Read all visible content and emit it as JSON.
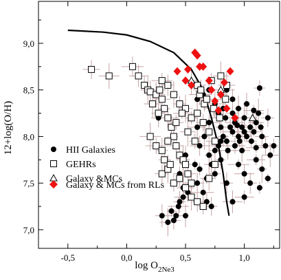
{
  "chart_data": {
    "type": "scatter",
    "title": "",
    "xlabel": {
      "main": "log O",
      "sub": "2Ne3"
    },
    "ylabel": "12+log(O/H)",
    "xlim": [
      -0.75,
      1.3
    ],
    "ylim": [
      6.8,
      9.45
    ],
    "x_ticks": [
      -0.5,
      0.0,
      0.5,
      1.0
    ],
    "x_tick_labels": [
      "-0,5",
      "0,0",
      "0,5",
      "1,0"
    ],
    "y_ticks": [
      7.0,
      7.5,
      8.0,
      8.5,
      9.0
    ],
    "y_tick_labels": [
      "7,0",
      "7,5",
      "8,0",
      "8,5",
      "9,0"
    ],
    "grid": false,
    "legend_position": "left-center",
    "colors": {
      "galaxy_rl": "#ee1111",
      "errorbar": "#c4a4a4",
      "black": "#000000"
    },
    "series": [
      {
        "name": "HII Galaxies",
        "marker": "filled-circle",
        "points": [
          [
            0.27,
            8.2
          ],
          [
            0.38,
            7.2
          ],
          [
            0.4,
            7.1
          ],
          [
            0.42,
            7.15
          ],
          [
            0.45,
            7.3
          ],
          [
            0.48,
            7.35
          ],
          [
            0.5,
            7.15
          ],
          [
            0.52,
            7.4
          ],
          [
            0.55,
            7.5
          ],
          [
            0.6,
            7.5
          ],
          [
            0.62,
            7.65
          ],
          [
            0.65,
            7.4
          ],
          [
            0.68,
            7.55
          ],
          [
            0.7,
            7.8
          ],
          [
            0.72,
            7.7
          ],
          [
            0.75,
            7.85
          ],
          [
            0.78,
            7.9
          ],
          [
            0.8,
            7.75
          ],
          [
            0.82,
            8.0
          ],
          [
            0.85,
            7.95
          ],
          [
            0.88,
            8.1
          ],
          [
            0.9,
            8.05
          ],
          [
            0.92,
            8.15
          ],
          [
            0.95,
            8.0
          ],
          [
            0.98,
            8.1
          ],
          [
            1.0,
            8.2
          ],
          [
            1.02,
            8.0
          ],
          [
            1.05,
            8.1
          ],
          [
            1.08,
            8.05
          ],
          [
            1.1,
            8.15
          ],
          [
            1.12,
            8.25
          ],
          [
            1.15,
            8.0
          ],
          [
            1.18,
            7.9
          ],
          [
            1.2,
            8.2
          ],
          [
            1.25,
            7.9
          ],
          [
            0.6,
            8.4
          ],
          [
            0.65,
            8.45
          ],
          [
            0.7,
            8.5
          ],
          [
            0.75,
            8.35
          ],
          [
            0.85,
            8.5
          ],
          [
            0.9,
            8.4
          ],
          [
            1.13,
            8.52
          ],
          [
            0.55,
            8.2
          ],
          [
            0.6,
            8.1
          ],
          [
            0.7,
            8.15
          ],
          [
            0.75,
            7.6
          ],
          [
            0.85,
            7.5
          ],
          [
            0.95,
            7.7
          ],
          [
            1.0,
            7.6
          ],
          [
            1.05,
            7.5
          ],
          [
            1.1,
            7.75
          ],
          [
            1.15,
            7.65
          ],
          [
            1.2,
            7.55
          ],
          [
            1.22,
            7.8
          ],
          [
            0.9,
            7.3
          ],
          [
            1.0,
            7.35
          ],
          [
            1.13,
            7.45
          ],
          [
            0.58,
            7.7
          ],
          [
            0.62,
            7.9
          ],
          [
            0.66,
            8.0
          ],
          [
            0.5,
            7.8
          ],
          [
            0.45,
            7.6
          ],
          [
            0.78,
            8.25
          ],
          [
            0.82,
            8.3
          ],
          [
            0.95,
            8.3
          ],
          [
            0.96,
            7.95
          ],
          [
            1.02,
            8.35
          ],
          [
            0.68,
            7.3
          ],
          [
            0.72,
            7.25
          ],
          [
            0.8,
            7.95
          ],
          [
            0.86,
            7.85
          ],
          [
            0.92,
            7.9
          ],
          [
            0.98,
            7.85
          ],
          [
            1.06,
            7.95
          ],
          [
            1.1,
            7.88
          ],
          [
            1.14,
            8.1
          ],
          [
            0.8,
            8.1
          ],
          [
            0.84,
            8.2
          ],
          [
            0.9,
            8.25
          ],
          [
            0.94,
            8.12
          ],
          [
            1.0,
            8.05
          ],
          [
            1.08,
            8.28
          ],
          [
            0.3,
            7.15
          ],
          [
            0.35,
            7.08
          ],
          [
            0.44,
            7.25
          ],
          [
            0.48,
            7.45
          ]
        ]
      },
      {
        "name": "GEHRs",
        "marker": "open-square",
        "points": [
          [
            -0.3,
            8.72
          ],
          [
            -0.15,
            8.65
          ],
          [
            0.05,
            8.75
          ],
          [
            0.1,
            8.65
          ],
          [
            0.15,
            8.55
          ],
          [
            0.18,
            8.5
          ],
          [
            0.2,
            8.48
          ],
          [
            0.25,
            8.45
          ],
          [
            0.28,
            8.5
          ],
          [
            0.3,
            8.4
          ],
          [
            0.32,
            8.3
          ],
          [
            0.35,
            8.2
          ],
          [
            0.38,
            8.1
          ],
          [
            0.4,
            8.0
          ],
          [
            0.42,
            7.9
          ],
          [
            0.45,
            7.8
          ],
          [
            0.48,
            7.75
          ],
          [
            0.5,
            7.7
          ],
          [
            0.52,
            7.6
          ],
          [
            0.55,
            7.5
          ],
          [
            0.3,
            8.6
          ],
          [
            0.35,
            8.55
          ],
          [
            0.4,
            8.45
          ],
          [
            0.45,
            8.35
          ],
          [
            0.5,
            8.3
          ],
          [
            0.55,
            8.2
          ],
          [
            0.6,
            8.25
          ],
          [
            0.65,
            8.15
          ],
          [
            0.7,
            8.05
          ],
          [
            0.75,
            7.95
          ],
          [
            0.3,
            7.6
          ],
          [
            0.35,
            7.65
          ],
          [
            0.4,
            7.5
          ],
          [
            0.45,
            7.55
          ],
          [
            0.5,
            7.45
          ],
          [
            0.55,
            7.35
          ],
          [
            0.6,
            7.3
          ],
          [
            0.65,
            7.25
          ],
          [
            0.7,
            7.55
          ],
          [
            0.75,
            7.7
          ],
          [
            0.2,
            8.0
          ],
          [
            0.25,
            7.9
          ],
          [
            0.3,
            7.85
          ],
          [
            0.35,
            7.95
          ],
          [
            0.6,
            8.55
          ],
          [
            0.62,
            8.45
          ],
          [
            0.66,
            8.35
          ],
          [
            0.72,
            8.6
          ],
          [
            0.8,
            8.65
          ],
          [
            0.85,
            8.55
          ],
          [
            0.42,
            8.15
          ],
          [
            0.47,
            8.25
          ],
          [
            0.52,
            8.05
          ],
          [
            0.58,
            7.95
          ],
          [
            0.63,
            8.5
          ],
          [
            0.68,
            8.4
          ],
          [
            0.22,
            8.35
          ],
          [
            0.27,
            8.25
          ],
          [
            0.32,
            7.75
          ],
          [
            0.37,
            7.7
          ],
          [
            0.74,
            8.3
          ],
          [
            0.79,
            8.2
          ],
          [
            0.84,
            8.4
          ]
        ]
      },
      {
        "name": "Galaxy &MCs",
        "marker": "open-triangle",
        "points": [
          [
            0.8,
            8.5
          ],
          [
            0.55,
            8.6
          ],
          [
            1.07,
            8.2
          ]
        ]
      },
      {
        "name": "Galaxy & MCs from RLs",
        "marker": "filled-diamond",
        "points": [
          [
            0.43,
            8.7
          ],
          [
            0.5,
            8.6
          ],
          [
            0.52,
            8.72
          ],
          [
            0.55,
            8.55
          ],
          [
            0.58,
            8.9
          ],
          [
            0.62,
            8.75
          ],
          [
            0.65,
            8.75
          ],
          [
            0.7,
            8.6
          ],
          [
            0.72,
            8.5
          ],
          [
            0.75,
            8.38
          ],
          [
            0.8,
            8.45
          ],
          [
            0.83,
            8.58
          ],
          [
            0.85,
            8.3
          ],
          [
            0.88,
            8.7
          ],
          [
            0.92,
            8.2
          ],
          [
            0.78,
            8.28
          ],
          [
            0.6,
            8.87
          ]
        ]
      }
    ],
    "curve": [
      [
        -0.5,
        9.14
      ],
      [
        -0.2,
        9.12
      ],
      [
        0.0,
        9.09
      ],
      [
        0.2,
        9.02
      ],
      [
        0.4,
        8.9
      ],
      [
        0.55,
        8.72
      ],
      [
        0.65,
        8.5
      ],
      [
        0.72,
        8.2
      ],
      [
        0.78,
        7.9
      ],
      [
        0.82,
        7.6
      ],
      [
        0.85,
        7.3
      ],
      [
        0.87,
        7.15
      ]
    ]
  }
}
